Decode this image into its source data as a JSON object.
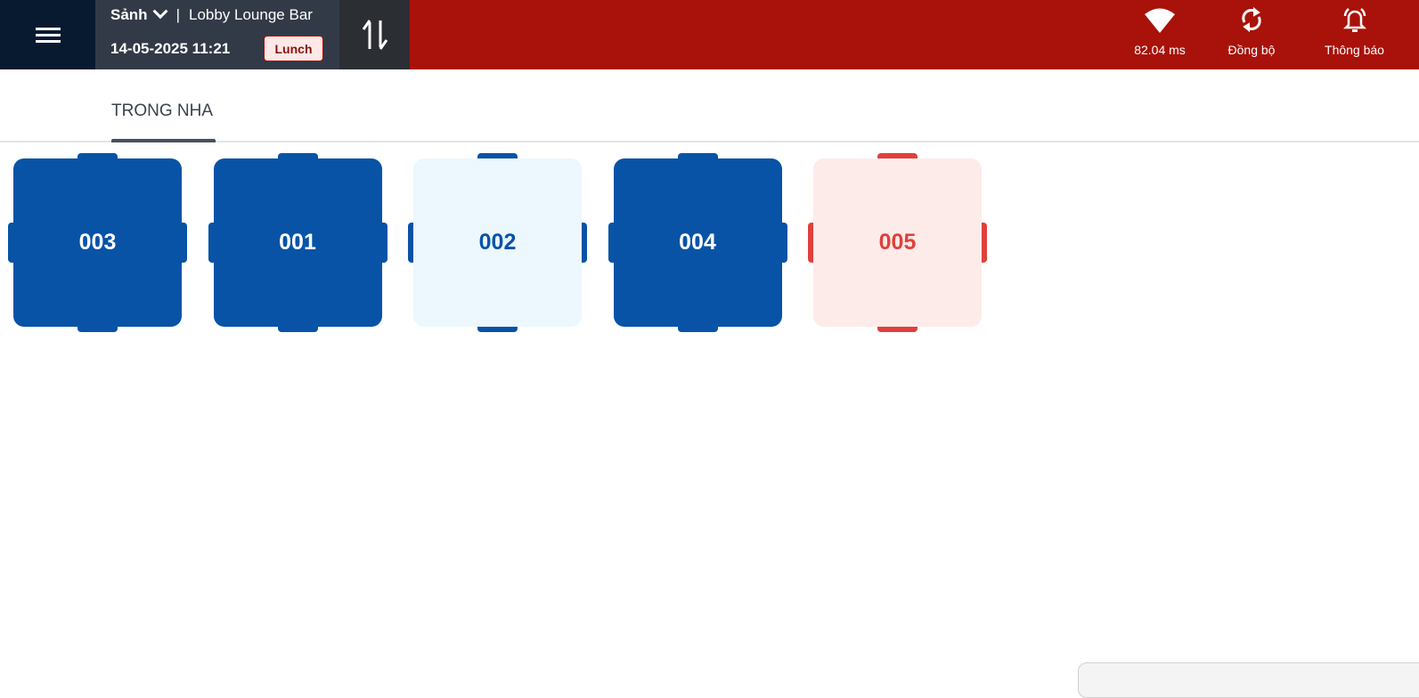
{
  "header": {
    "area": "Sảnh",
    "separator": "|",
    "outlet": "Lobby Lounge Bar",
    "datetime": "14-05-2025 11:21",
    "shift": "Lunch",
    "latency": "82.04 ms",
    "sync_label": "Đồng bộ",
    "notify_label": "Thông báo"
  },
  "tabs": [
    {
      "label": "TRONG NHA",
      "active": true
    }
  ],
  "tables": [
    {
      "name": "003",
      "status": "occupied",
      "bg": "#0853a6",
      "fg": "#ffffff",
      "chair": "#0853a6"
    },
    {
      "name": "001",
      "status": "occupied",
      "bg": "#0853a6",
      "fg": "#ffffff",
      "chair": "#0853a6"
    },
    {
      "name": "002",
      "status": "available",
      "bg": "#ecf7fe",
      "fg": "#0853a6",
      "chair": "#0853a6"
    },
    {
      "name": "004",
      "status": "occupied",
      "bg": "#0853a6",
      "fg": "#ffffff",
      "chair": "#0853a6"
    },
    {
      "name": "005",
      "status": "reserved",
      "bg": "#fdebea",
      "fg": "#e0403b",
      "chair": "#e0403b"
    }
  ]
}
